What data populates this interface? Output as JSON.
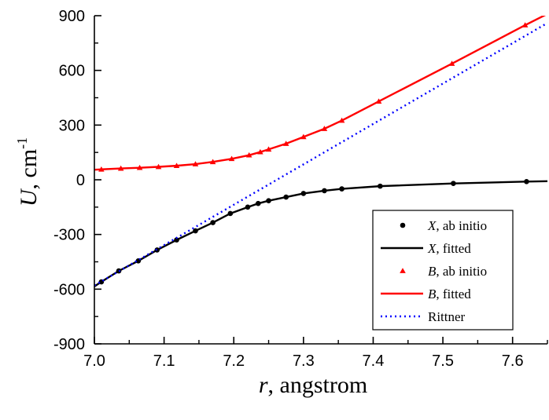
{
  "chart_data": {
    "type": "line",
    "xlabel": {
      "var": "r",
      "rest": ", angstrom"
    },
    "ylabel": {
      "var": "U",
      "rest": ", cm",
      "sup": "-1"
    },
    "xlim": [
      7.0,
      7.65
    ],
    "ylim": [
      -900,
      900
    ],
    "xticks": [
      7.0,
      7.1,
      7.2,
      7.3,
      7.4,
      7.5,
      7.6
    ],
    "xtick_labels": [
      "7.0",
      "7.1",
      "7.2",
      "7.3",
      "7.4",
      "7.5",
      "7.6"
    ],
    "yticks": [
      -900,
      -600,
      -300,
      0,
      300,
      600,
      900
    ],
    "ytick_labels": [
      "-900",
      "-600",
      "-300",
      "0",
      "300",
      "600",
      "900"
    ],
    "grid": false,
    "legend_position": "bottom-right",
    "legend": [
      {
        "var": "X",
        "text": ", ab initio",
        "marker": "circle",
        "color": "#000000"
      },
      {
        "var": "X",
        "text": ", fitted",
        "marker": "line",
        "color": "#000000"
      },
      {
        "var": "B",
        "text": ", ab initio",
        "marker": "triangle",
        "color": "#ff0000"
      },
      {
        "var": "B",
        "text": ", fitted",
        "marker": "line",
        "color": "#ff0000"
      },
      {
        "var": "",
        "text": "Rittner",
        "marker": "dotted",
        "color": "#0000ff"
      }
    ],
    "series": [
      {
        "name": "X, ab initio",
        "style": "points-circle",
        "color": "#000000",
        "x": [
          7.01,
          7.035,
          7.063,
          7.09,
          7.118,
          7.145,
          7.17,
          7.195,
          7.22,
          7.235,
          7.25,
          7.275,
          7.3,
          7.33,
          7.355,
          7.41,
          7.515,
          7.62
        ],
        "y": [
          -560,
          -500,
          -445,
          -385,
          -330,
          -280,
          -235,
          -185,
          -150,
          -130,
          -115,
          -95,
          -75,
          -60,
          -50,
          -35,
          -20,
          -10
        ]
      },
      {
        "name": "X, fitted",
        "style": "line-solid",
        "color": "#000000",
        "x": [
          7.0,
          7.01,
          7.035,
          7.063,
          7.09,
          7.118,
          7.145,
          7.17,
          7.195,
          7.22,
          7.235,
          7.25,
          7.275,
          7.3,
          7.33,
          7.355,
          7.41,
          7.515,
          7.62,
          7.65
        ],
        "y": [
          -585,
          -560,
          -500,
          -445,
          -385,
          -330,
          -280,
          -235,
          -185,
          -150,
          -130,
          -115,
          -95,
          -75,
          -60,
          -50,
          -35,
          -20,
          -10,
          -8
        ]
      },
      {
        "name": "B, ab initio",
        "style": "points-triangle",
        "color": "#ff0000",
        "x": [
          7.01,
          7.038,
          7.065,
          7.092,
          7.118,
          7.145,
          7.17,
          7.197,
          7.222,
          7.238,
          7.25,
          7.275,
          7.3,
          7.33,
          7.355,
          7.408,
          7.513,
          7.618
        ],
        "y": [
          57,
          62,
          66,
          71,
          77,
          86,
          98,
          115,
          135,
          152,
          167,
          198,
          235,
          280,
          325,
          430,
          637,
          848
        ]
      },
      {
        "name": "B, fitted",
        "style": "line-solid",
        "color": "#ff0000",
        "x": [
          7.0,
          7.01,
          7.038,
          7.065,
          7.092,
          7.118,
          7.145,
          7.17,
          7.197,
          7.222,
          7.238,
          7.25,
          7.275,
          7.3,
          7.33,
          7.355,
          7.408,
          7.513,
          7.618,
          7.65
        ],
        "y": [
          55,
          57,
          62,
          66,
          71,
          77,
          86,
          98,
          115,
          135,
          152,
          167,
          198,
          235,
          280,
          325,
          430,
          637,
          848,
          910
        ]
      },
      {
        "name": "Rittner",
        "style": "line-dotted",
        "color": "#0000ff",
        "x": [
          7.0,
          7.65
        ],
        "y": [
          -580,
          860
        ]
      }
    ]
  }
}
